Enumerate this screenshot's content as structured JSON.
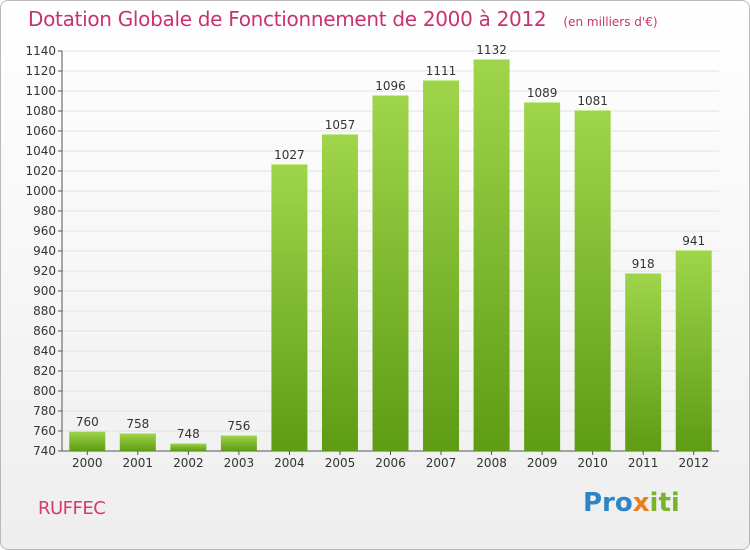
{
  "header": {
    "title": "Dotation Globale de Fonctionnement de 2000 à 2012",
    "subtitle": "(en milliers d'€)"
  },
  "footer": {
    "commune": "RUFFEC",
    "logo": {
      "text": "Proxiti",
      "colors": [
        "#2f84c6",
        "#e87f1b",
        "#79b52a"
      ]
    }
  },
  "chart_data": {
    "type": "bar",
    "title": "Dotation Globale de Fonctionnement de 2000 à 2012",
    "subtitle": "(en milliers d'€)",
    "categories": [
      "2000",
      "2001",
      "2002",
      "2003",
      "2004",
      "2005",
      "2006",
      "2007",
      "2008",
      "2009",
      "2010",
      "2011",
      "2012"
    ],
    "values": [
      760,
      758,
      748,
      756,
      1027,
      1057,
      1096,
      1111,
      1132,
      1089,
      1081,
      918,
      941
    ],
    "ylim": [
      740,
      1140
    ],
    "yticks": [
      740,
      760,
      780,
      800,
      820,
      840,
      860,
      880,
      900,
      920,
      940,
      960,
      980,
      1000,
      1020,
      1040,
      1060,
      1080,
      1100,
      1120,
      1140
    ],
    "grid": true,
    "data_labels": true,
    "colors": {
      "bar_top": "#9fd54b",
      "bar_bottom": "#5e9c14",
      "title": "#c8336f"
    }
  }
}
